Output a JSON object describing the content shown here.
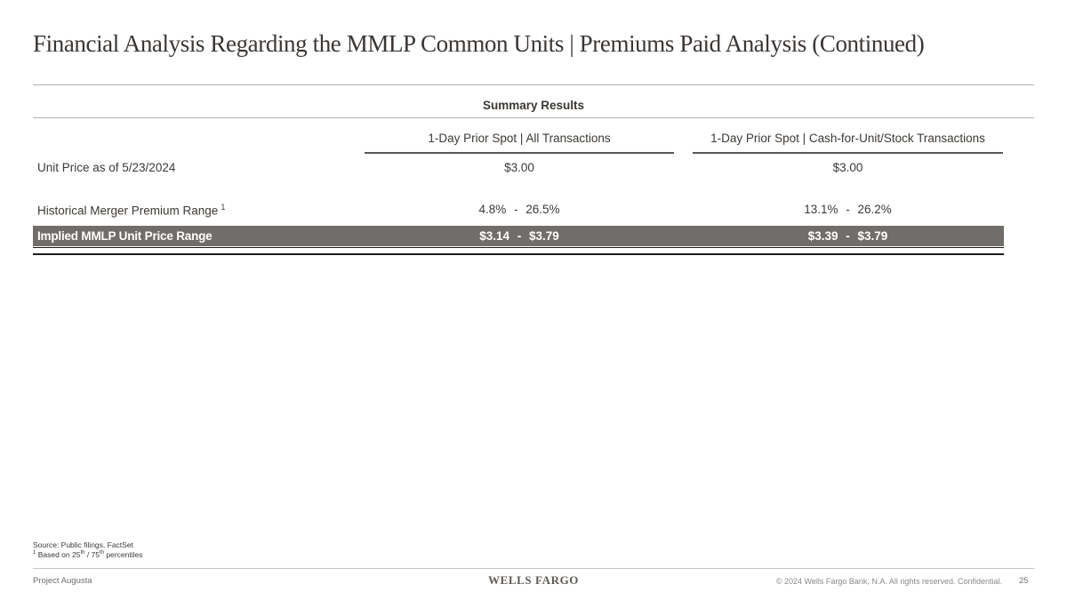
{
  "title": "Financial Analysis Regarding the MMLP Common Units | Premiums Paid Analysis (Continued)",
  "summary": {
    "section_header": "Summary Results",
    "columns": [
      {
        "label": "1-Day Prior Spot | All Transactions"
      },
      {
        "label": "1-Day Prior Spot | Cash-for-Unit/Stock Transactions"
      }
    ],
    "rows": [
      {
        "label": "Unit Price as of 5/23/2024",
        "footnote_marker": "",
        "col1": "$3.00",
        "col2": "$3.00",
        "highlight": false
      },
      {
        "label": "Historical Merger Premium Range",
        "footnote_marker": "1",
        "col1": "4.8% - 26.5%",
        "col2": "13.1% - 26.2%",
        "highlight": false
      },
      {
        "label": "Implied MMLP Unit Price Range",
        "footnote_marker": "",
        "col1": "$3.14 - $3.79",
        "col2": "$3.39 - $3.79",
        "highlight": true
      }
    ]
  },
  "footnotes": {
    "source": "Source: Public filings, FactSet",
    "note1_marker": "1",
    "note1_p1": "Based on 25",
    "note1_s1": "th",
    "note1_p2": " / 75",
    "note1_s2": "th",
    "note1_p3": " percentiles"
  },
  "footer": {
    "project": "Project Augusta",
    "logo": "WELLS FARGO",
    "copyright": "© 2024 Wells Fargo Bank, N.A. All rights reserved. Confidential.",
    "page_number": "25"
  },
  "colors": {
    "highlight_row_bg": "#716d6a",
    "highlight_row_text": "#ffffff",
    "header_underline": "#5a5755",
    "light_rule": "#b5b2af",
    "total_rule": "#1c1c1c",
    "body_text": "#3d3935"
  }
}
